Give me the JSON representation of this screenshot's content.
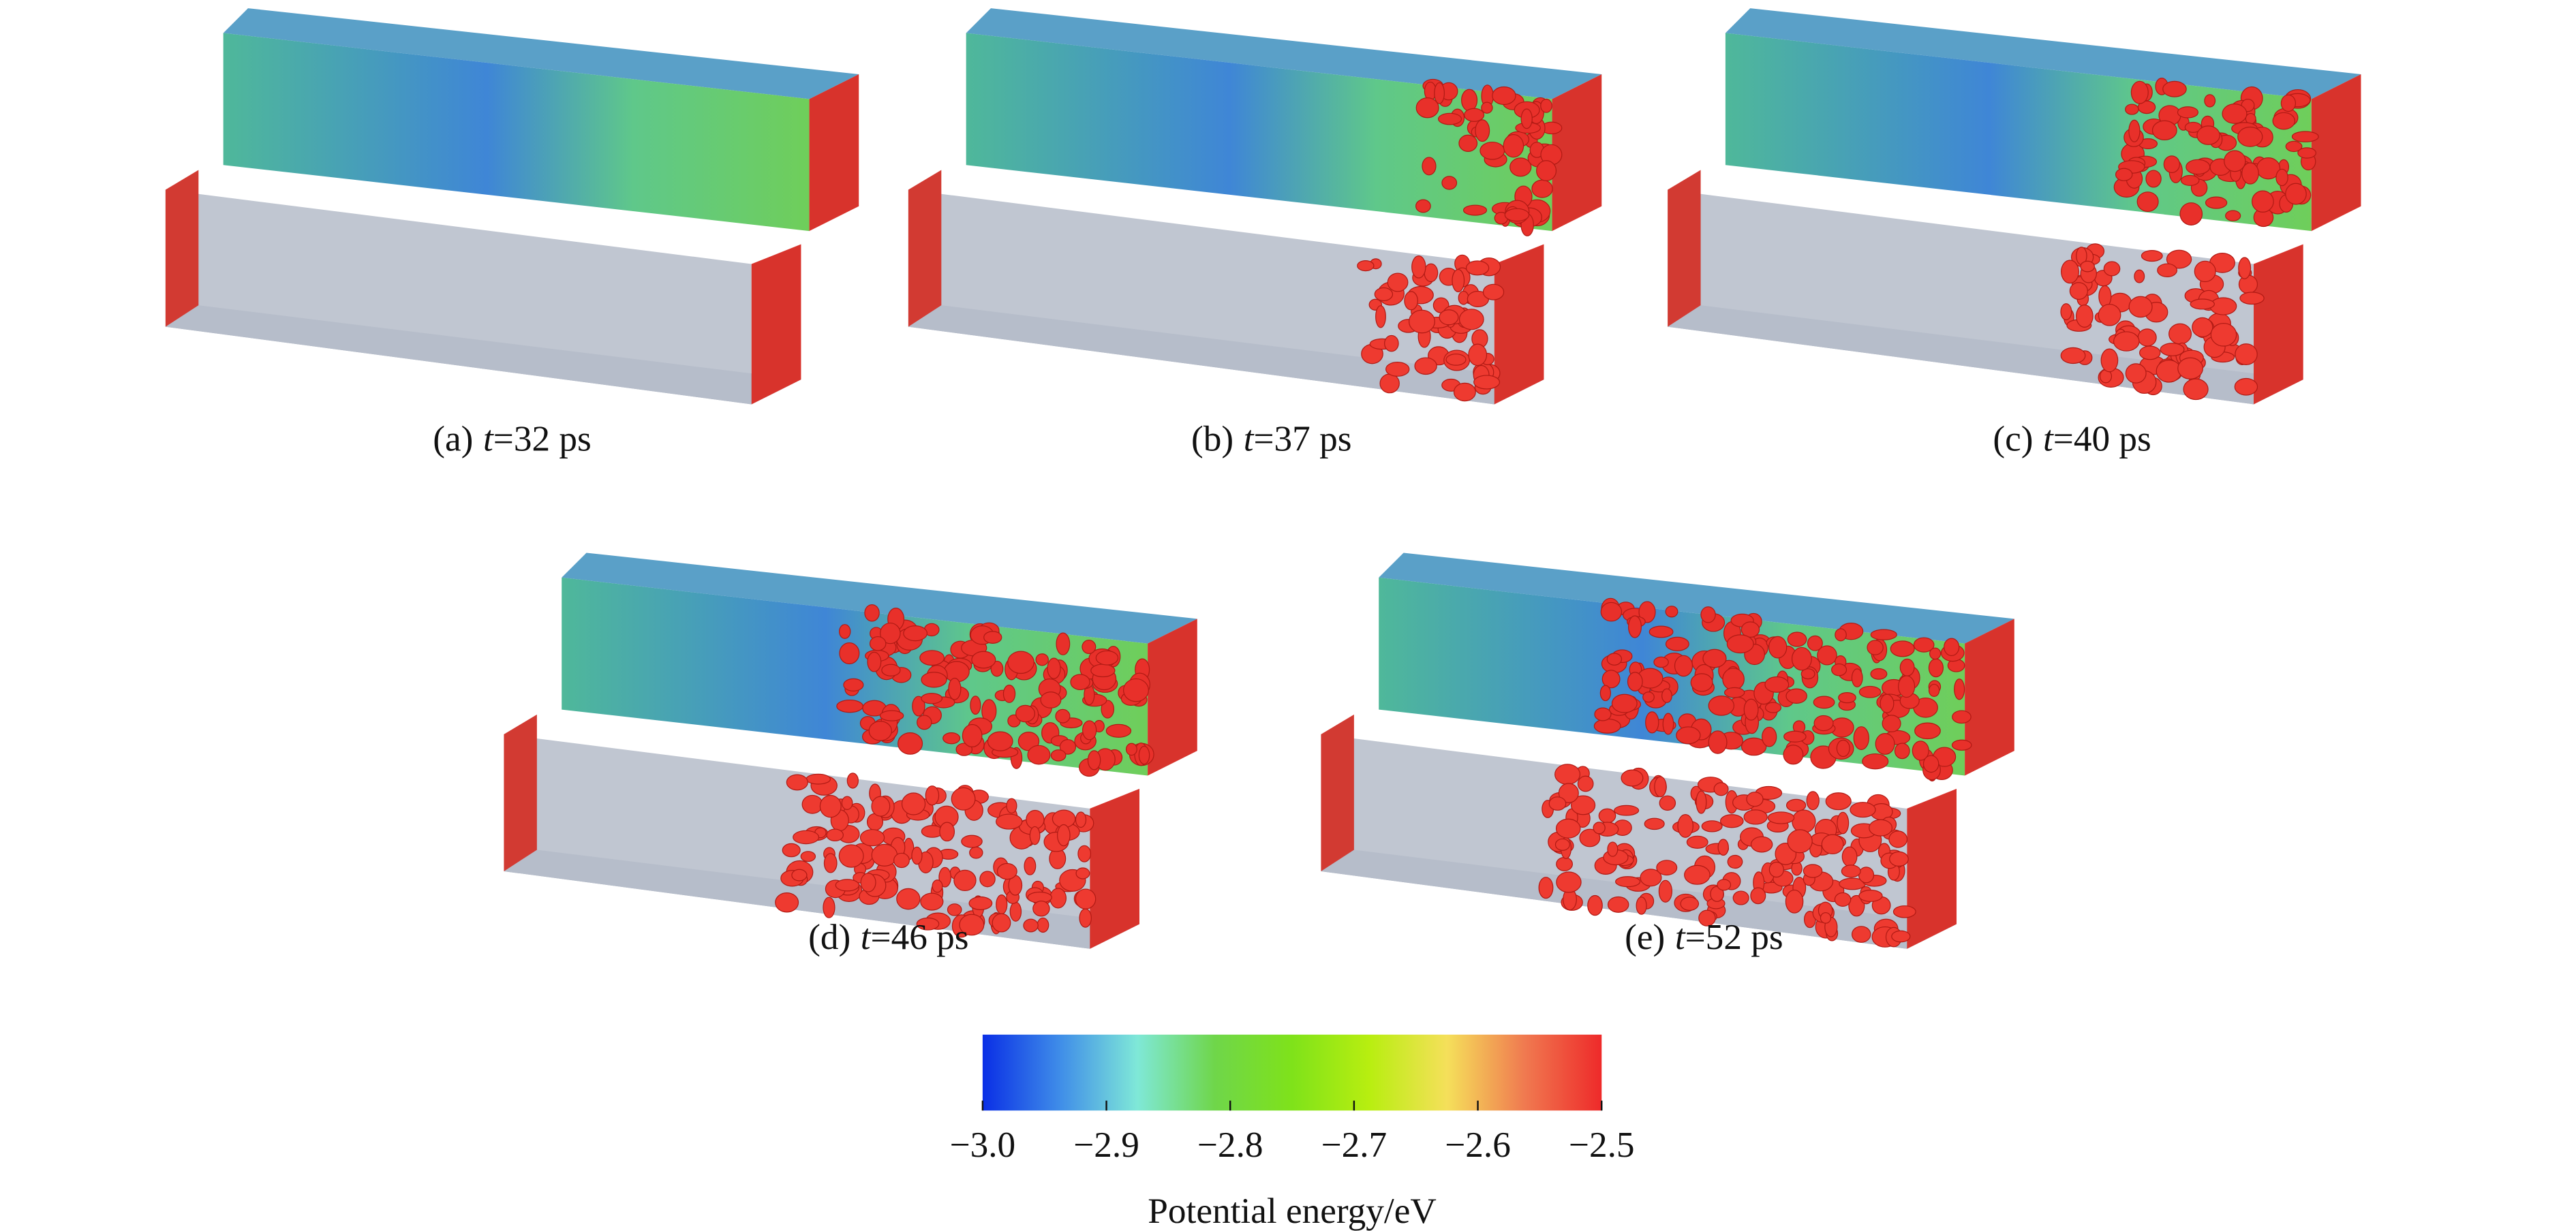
{
  "panels": [
    {
      "label": "(a)",
      "variable": "t",
      "time": "=32 ps"
    },
    {
      "label": "(b)",
      "variable": "t",
      "time": "=37 ps"
    },
    {
      "label": "(c)",
      "variable": "t",
      "time": "=40 ps"
    },
    {
      "label": "(d)",
      "variable": "t",
      "time": "=46 ps"
    },
    {
      "label": "(e)",
      "variable": "t",
      "time": "=52 ps"
    }
  ],
  "colorbar": {
    "lim": [
      -3.0,
      -2.5
    ],
    "ticks": [
      {
        "value": -3.0,
        "label": "−3.0"
      },
      {
        "value": -2.9,
        "label": "−2.9"
      },
      {
        "value": -2.8,
        "label": "−2.8"
      },
      {
        "value": -2.7,
        "label": "−2.7"
      },
      {
        "value": -2.6,
        "label": "−2.6"
      },
      {
        "value": -2.5,
        "label": "−2.5"
      }
    ],
    "colors": [
      "#0a2fe6",
      "#3f8de8",
      "#7fe8d8",
      "#6fd64a",
      "#7fe21a",
      "#b8ee10",
      "#f5e05a",
      "#f07a50",
      "#ee2a2a"
    ],
    "label": "Potential energy/eV"
  }
}
